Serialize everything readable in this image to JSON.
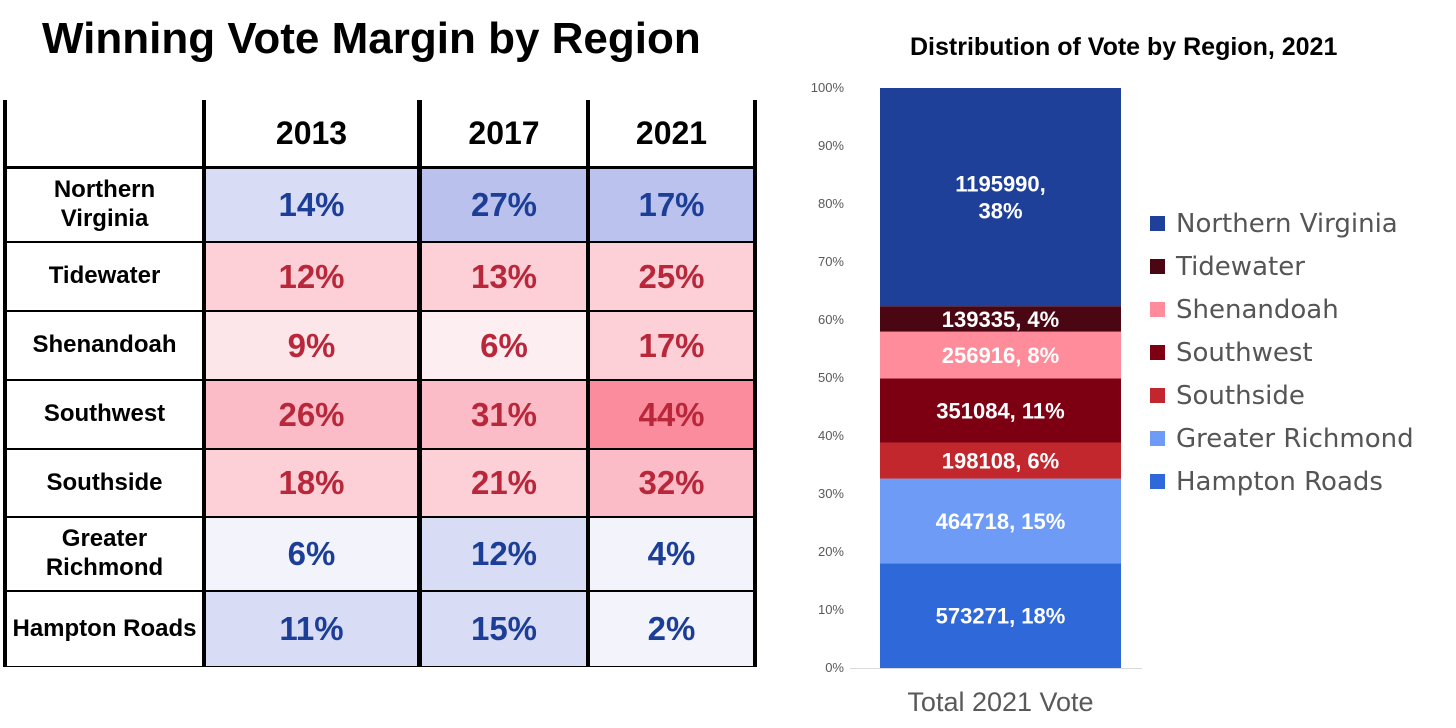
{
  "left_title": "Winning Vote Margin by Region",
  "margin_table": {
    "header_blank": "",
    "years": [
      "2013",
      "2017",
      "2021"
    ],
    "rows": [
      {
        "region": "Northern Virginia",
        "values": [
          "14%",
          "27%",
          "17%"
        ],
        "party": [
          "D",
          "D",
          "D"
        ],
        "colors": [
          "#d8dcf4",
          "#b9c1ec",
          "#bac2ed"
        ]
      },
      {
        "region": "Tidewater",
        "values": [
          "12%",
          "13%",
          "25%"
        ],
        "party": [
          "R",
          "R",
          "R"
        ],
        "colors": [
          "#fdd0d8",
          "#fdd0d8",
          "#fdd0d8"
        ]
      },
      {
        "region": "Shenandoah",
        "values": [
          "9%",
          "6%",
          "17%"
        ],
        "party": [
          "R",
          "R",
          "R"
        ],
        "colors": [
          "#fde6ea",
          "#fdeef1",
          "#fdd0d8"
        ]
      },
      {
        "region": "Southwest",
        "values": [
          "26%",
          "31%",
          "44%"
        ],
        "party": [
          "R",
          "R",
          "R"
        ],
        "colors": [
          "#fbbcc7",
          "#fbbcc7",
          "#fa8c9e"
        ]
      },
      {
        "region": "Southside",
        "values": [
          "18%",
          "21%",
          "32%"
        ],
        "party": [
          "R",
          "R",
          "R"
        ],
        "colors": [
          "#fdd0d8",
          "#fdd0d8",
          "#fbbcc7"
        ]
      },
      {
        "region": "Greater Richmond",
        "values": [
          "6%",
          "12%",
          "4%"
        ],
        "party": [
          "D",
          "D",
          "D"
        ],
        "colors": [
          "#f3f4fb",
          "#d8dcf4",
          "#f3f4fb"
        ]
      },
      {
        "region": "Hampton Roads",
        "values": [
          "11%",
          "15%",
          "2%"
        ],
        "party": [
          "D",
          "D",
          "D"
        ],
        "colors": [
          "#d8dcf4",
          "#d8dcf4",
          "#f3f4fb"
        ]
      }
    ],
    "text_colors": {
      "D": "#1c3e96",
      "R": "#b8283a"
    }
  },
  "chart_data": {
    "type": "bar",
    "stacked": true,
    "title": "Distribution of Vote by Region, 2021",
    "categories": [
      "Total 2021 Vote"
    ],
    "ylim": [
      0,
      100
    ],
    "yticks": [
      "0%",
      "10%",
      "20%",
      "30%",
      "40%",
      "50%",
      "60%",
      "70%",
      "80%",
      "90%",
      "100%"
    ],
    "grid": false,
    "legend_position": "right",
    "series": [
      {
        "name": "Hampton Roads",
        "value": 573271,
        "percent": 18,
        "label": "573271, 18%",
        "color": "#2f68d8"
      },
      {
        "name": "Greater Richmond",
        "value": 464718,
        "percent": 15,
        "label": "464718, 15%",
        "color": "#6d9bf5"
      },
      {
        "name": "Southside",
        "value": 198108,
        "percent": 6,
        "label": "198108, 6%",
        "color": "#c1272d"
      },
      {
        "name": "Southwest",
        "value": 351084,
        "percent": 11,
        "label": "351084, 11%",
        "color": "#7d0012"
      },
      {
        "name": "Shenandoah",
        "value": 256916,
        "percent": 8,
        "label": "256916, 8%",
        "color": "#ff8c9a"
      },
      {
        "name": "Tidewater",
        "value": 139335,
        "percent": 4,
        "label": "139335, 4%",
        "color": "#4a0612"
      },
      {
        "name": "Northern Virginia",
        "value": 1195990,
        "percent": 38,
        "label": "1195990,\n38%",
        "color": "#1f4099"
      }
    ],
    "legend_order": [
      "Northern Virginia",
      "Tidewater",
      "Shenandoah",
      "Southwest",
      "Southside",
      "Greater Richmond",
      "Hampton Roads"
    ]
  }
}
